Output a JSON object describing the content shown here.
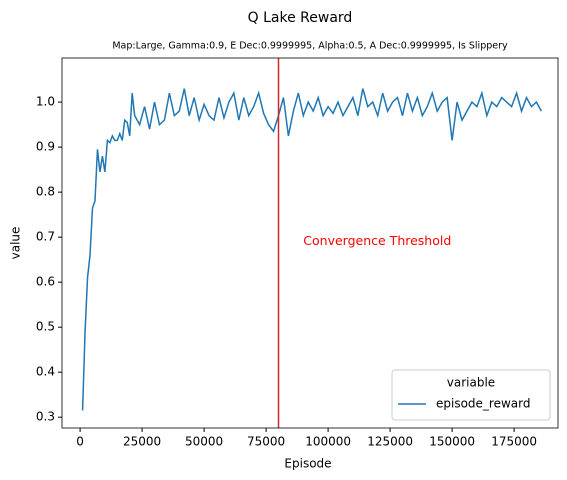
{
  "chart_data": {
    "type": "line",
    "title": "Q Lake Reward",
    "subtitle": "Map:Large, Gamma:0.9, E Dec:0.9999995, Alpha:0.5, A Dec:0.9999995, Is Slippery",
    "xlabel": "Episode",
    "ylabel": "value",
    "xlim": [
      -7300,
      192700
    ],
    "ylim": [
      0.276,
      1.098
    ],
    "xticks": [
      0,
      25000,
      50000,
      75000,
      100000,
      125000,
      150000,
      175000
    ],
    "yticks": [
      0.3,
      0.4,
      0.5,
      0.6,
      0.7,
      0.8,
      0.9,
      {
        "value": 1,
        "label": "1.0"
      }
    ],
    "legend": {
      "title": "variable",
      "position": "lower right"
    },
    "series": [
      {
        "name": "episode_reward",
        "color": "#1f77b4",
        "x": [
          1000,
          2000,
          3000,
          4000,
          5000,
          6000,
          7000,
          8000,
          9000,
          10000,
          11000,
          12000,
          13000,
          14000,
          15000,
          16000,
          17000,
          18000,
          19000,
          20000,
          21000,
          22000,
          24000,
          26000,
          28000,
          30000,
          32000,
          34000,
          36000,
          38000,
          40000,
          42000,
          44000,
          46000,
          48000,
          50000,
          52000,
          54000,
          56000,
          58000,
          60000,
          62000,
          64000,
          66000,
          68000,
          70000,
          72000,
          74000,
          76000,
          78000,
          80000,
          82000,
          84000,
          86000,
          88000,
          90000,
          92000,
          94000,
          96000,
          98000,
          100000,
          102000,
          104000,
          106000,
          108000,
          110000,
          112000,
          114000,
          116000,
          118000,
          120000,
          122000,
          124000,
          126000,
          128000,
          130000,
          132000,
          134000,
          136000,
          138000,
          140000,
          142000,
          144000,
          146000,
          148000,
          150000,
          152000,
          154000,
          156000,
          158000,
          160000,
          162000,
          164000,
          166000,
          168000,
          170000,
          172000,
          174000,
          176000,
          178000,
          180000,
          182000,
          184000,
          186000
        ],
        "values": [
          0.315,
          0.49,
          0.61,
          0.66,
          0.765,
          0.78,
          0.895,
          0.845,
          0.88,
          0.845,
          0.915,
          0.91,
          0.925,
          0.915,
          0.915,
          0.93,
          0.915,
          0.96,
          0.955,
          0.925,
          1.02,
          0.97,
          0.95,
          0.99,
          0.94,
          1.0,
          0.95,
          0.96,
          1.02,
          0.97,
          0.98,
          1.03,
          0.97,
          1.01,
          0.96,
          0.995,
          0.97,
          0.96,
          1.01,
          0.965,
          1.0,
          1.02,
          0.96,
          1.01,
          0.97,
          0.99,
          1.02,
          0.975,
          0.95,
          0.935,
          0.97,
          1.01,
          0.925,
          0.98,
          1.02,
          0.97,
          1.0,
          0.98,
          1.01,
          0.97,
          0.99,
          0.975,
          1.0,
          0.97,
          0.99,
          1.01,
          0.97,
          1.03,
          0.99,
          1.0,
          0.97,
          1.02,
          0.98,
          1.0,
          1.01,
          0.97,
          1.02,
          0.98,
          1.01,
          0.97,
          0.99,
          1.02,
          0.98,
          1.0,
          1.01,
          0.915,
          1.0,
          0.96,
          0.98,
          1.0,
          0.99,
          1.02,
          0.97,
          1.0,
          0.99,
          1.01,
          1.0,
          0.99,
          1.02,
          0.98,
          1.01,
          0.99,
          1.0,
          0.98
        ]
      }
    ],
    "vlines": [
      {
        "x": 80000,
        "color": "#d62728"
      }
    ],
    "annotations": [
      {
        "text": "Convergence Threshold",
        "x": 90000,
        "y": 0.69,
        "color": "red"
      }
    ]
  }
}
